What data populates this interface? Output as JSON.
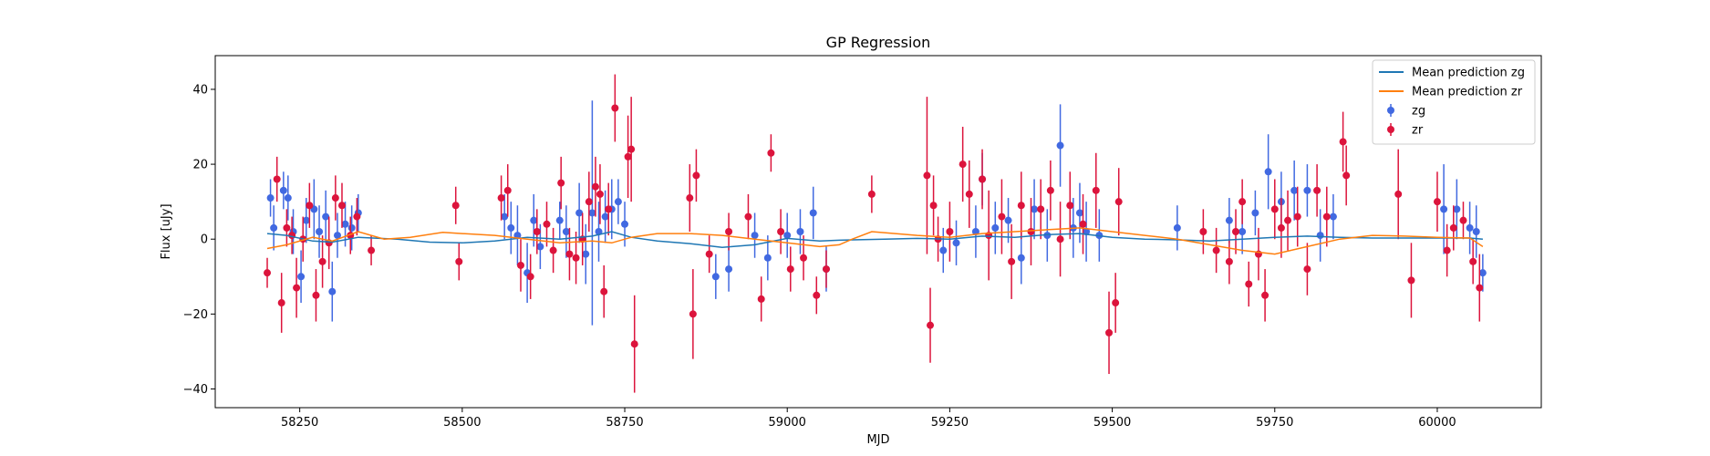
{
  "chart_data": {
    "type": "scatter",
    "title": "GP Regression",
    "xlabel": "MJD",
    "ylabel": "Flux [uJy]",
    "xlim": [
      58120,
      60160
    ],
    "ylim": [
      -45,
      49
    ],
    "xticks": [
      58250,
      58500,
      58750,
      59000,
      59250,
      59500,
      59750,
      60000
    ],
    "yticks": [
      -40,
      -20,
      0,
      20,
      40
    ],
    "grid": false,
    "legend_position": "top-right",
    "legend": [
      {
        "label": "Mean prediction zg",
        "kind": "line",
        "color": "#1f77b4"
      },
      {
        "label": "Mean prediction zr",
        "kind": "line",
        "color": "#ff7f0e"
      },
      {
        "label": "zg",
        "kind": "errorbar",
        "color": "#4169e1"
      },
      {
        "label": "zr",
        "kind": "errorbar",
        "color": "#dc143c"
      }
    ],
    "series": [
      {
        "name": "Mean prediction zg",
        "kind": "line",
        "color": "#1f77b4",
        "x": [
          58200,
          58230,
          58270,
          58300,
          58340,
          58400,
          58450,
          58500,
          58550,
          58600,
          58650,
          58700,
          58730,
          58760,
          58800,
          58850,
          58900,
          58950,
          59000,
          59050,
          59080,
          59100,
          59150,
          59200,
          59250,
          59300,
          59350,
          59400,
          59450,
          59500,
          59550,
          59600,
          59650,
          59700,
          59750,
          59800,
          59850,
          59900,
          59950,
          60000,
          60050,
          60070
        ],
        "y": [
          1.5,
          1.0,
          -0.5,
          -0.8,
          0.5,
          0.0,
          -0.8,
          -1.0,
          -0.5,
          0.5,
          0.0,
          0.8,
          2.0,
          0.5,
          -0.5,
          -1.2,
          -2.2,
          -1.5,
          0.2,
          -0.5,
          -0.3,
          -0.2,
          0.0,
          0.2,
          0.0,
          0.8,
          0.5,
          1.2,
          1.5,
          0.5,
          0.0,
          -0.2,
          -0.5,
          0.0,
          0.5,
          0.8,
          0.5,
          0.3,
          0.3,
          0.3,
          0.3,
          0.0
        ]
      },
      {
        "name": "Mean prediction zr",
        "kind": "line",
        "color": "#ff7f0e",
        "x": [
          58200,
          58230,
          58270,
          58300,
          58340,
          58380,
          58420,
          58470,
          58500,
          58550,
          58600,
          58650,
          58700,
          58730,
          58760,
          58800,
          58850,
          58900,
          58950,
          59000,
          59050,
          59080,
          59100,
          59130,
          59200,
          59250,
          59300,
          59350,
          59400,
          59450,
          59500,
          59550,
          59600,
          59650,
          59700,
          59750,
          59800,
          59850,
          59900,
          59950,
          60000,
          60050,
          60070
        ],
        "y": [
          -2.5,
          -1.5,
          0.5,
          -0.5,
          2.0,
          0.0,
          0.5,
          1.8,
          1.5,
          1.0,
          0.0,
          -1.0,
          -0.5,
          -1.0,
          0.5,
          1.5,
          1.5,
          1.0,
          0.0,
          -1.0,
          -2.0,
          -1.5,
          0.0,
          2.0,
          1.0,
          0.5,
          1.5,
          2.0,
          2.5,
          3.0,
          2.0,
          1.0,
          0.0,
          -1.5,
          -3.0,
          -4.0,
          -2.0,
          0.0,
          1.0,
          0.8,
          0.5,
          0.3,
          -2.0
        ]
      },
      {
        "name": "zg",
        "kind": "errorbar",
        "color": "#4169e1",
        "x": [
          58205,
          58210,
          58225,
          58232,
          58240,
          58252,
          58260,
          58272,
          58280,
          58290,
          58300,
          58308,
          58320,
          58330,
          58340,
          58565,
          58575,
          58585,
          58600,
          58610,
          58620,
          58650,
          58660,
          58680,
          58690,
          58700,
          58710,
          58720,
          58730,
          58740,
          58750,
          58890,
          58910,
          58950,
          58970,
          59000,
          59020,
          59040,
          59060,
          59240,
          59260,
          59290,
          59300,
          59320,
          59340,
          59360,
          59380,
          59400,
          59420,
          59440,
          59450,
          59460,
          59480,
          59600,
          59680,
          59700,
          59720,
          59740,
          59760,
          59780,
          59800,
          59820,
          59840,
          60010,
          60030,
          60050,
          60060,
          60070
        ],
        "y": [
          11,
          3,
          13,
          11,
          2,
          -10,
          5,
          8,
          2,
          6,
          -14,
          1,
          4,
          3,
          7,
          6,
          3,
          1,
          -9,
          5,
          -2,
          5,
          2,
          7,
          -4,
          7,
          2,
          6,
          8,
          10,
          4,
          -10,
          -8,
          1,
          -5,
          1,
          2,
          7,
          -8,
          -3,
          -1,
          2,
          16,
          3,
          5,
          -5,
          8,
          1,
          25,
          3,
          7,
          2,
          1,
          3,
          5,
          2,
          7,
          18,
          10,
          13,
          13,
          1,
          6,
          8,
          8,
          3,
          2,
          -9
        ],
        "err": [
          5,
          6,
          5,
          6,
          6,
          7,
          6,
          8,
          7,
          7,
          8,
          6,
          6,
          6,
          5,
          6,
          7,
          8,
          8,
          7,
          6,
          5,
          7,
          8,
          8,
          30,
          8,
          7,
          8,
          6,
          6,
          6,
          6,
          6,
          6,
          6,
          6,
          7,
          6,
          6,
          6,
          7,
          7,
          7,
          6,
          7,
          8,
          7,
          11,
          8,
          8,
          8,
          7,
          6,
          6,
          6,
          6,
          10,
          8,
          8,
          7,
          7,
          6,
          12,
          8,
          7,
          7,
          5
        ]
      },
      {
        "name": "zr",
        "kind": "errorbar",
        "color": "#dc143c",
        "x": [
          58200,
          58215,
          58222,
          58230,
          58238,
          58245,
          58255,
          58265,
          58275,
          58285,
          58295,
          58305,
          58315,
          58328,
          58338,
          58360,
          58490,
          58495,
          58560,
          58570,
          58590,
          58605,
          58615,
          58630,
          58640,
          58652,
          58665,
          58675,
          58685,
          58695,
          58705,
          58712,
          58718,
          58725,
          58735,
          58755,
          58760,
          58765,
          58850,
          58855,
          58860,
          58880,
          58910,
          58940,
          58960,
          58975,
          58990,
          59005,
          59025,
          59045,
          59060,
          59130,
          59215,
          59220,
          59225,
          59232,
          59250,
          59270,
          59280,
          59300,
          59310,
          59330,
          59345,
          59360,
          59375,
          59390,
          59405,
          59420,
          59435,
          59455,
          59475,
          59495,
          59505,
          59510,
          59640,
          59660,
          59680,
          59690,
          59700,
          59710,
          59725,
          59735,
          59750,
          59760,
          59770,
          59785,
          59800,
          59815,
          59830,
          59855,
          59860,
          59940,
          59960,
          60000,
          60015,
          60025,
          60040,
          60055,
          60065
        ],
        "y": [
          -9,
          16,
          -17,
          3,
          1,
          -13,
          0,
          9,
          -15,
          -6,
          -1,
          11,
          9,
          1,
          6,
          -3,
          9,
          -6,
          11,
          13,
          -7,
          -10,
          2,
          4,
          -3,
          15,
          -4,
          -5,
          0,
          10,
          14,
          12,
          -14,
          8,
          35,
          22,
          24,
          -28,
          11,
          -20,
          17,
          -4,
          2,
          6,
          -16,
          23,
          2,
          -8,
          -5,
          -15,
          -8,
          12,
          17,
          -23,
          9,
          0,
          2,
          20,
          12,
          16,
          1,
          6,
          -6,
          9,
          2,
          8,
          13,
          0,
          9,
          4,
          13,
          -25,
          -17,
          10,
          2,
          -3,
          -6,
          2,
          10,
          -12,
          -4,
          -15,
          8,
          3,
          5,
          6,
          -8,
          13,
          6,
          26,
          17,
          12,
          -11,
          10,
          -3,
          3,
          5,
          -6,
          -13
        ],
        "err": [
          4,
          6,
          8,
          5,
          5,
          8,
          6,
          6,
          7,
          7,
          7,
          6,
          6,
          5,
          5,
          4,
          5,
          5,
          6,
          7,
          7,
          6,
          6,
          6,
          6,
          7,
          7,
          7,
          7,
          8,
          8,
          8,
          7,
          7,
          9,
          11,
          14,
          13,
          9,
          12,
          7,
          5,
          5,
          6,
          6,
          5,
          6,
          6,
          6,
          5,
          5,
          5,
          21,
          10,
          8,
          6,
          8,
          10,
          9,
          8,
          12,
          10,
          10,
          9,
          9,
          8,
          8,
          10,
          9,
          8,
          10,
          11,
          8,
          9,
          6,
          6,
          6,
          6,
          6,
          6,
          7,
          7,
          8,
          8,
          8,
          8,
          7,
          7,
          8,
          8,
          8,
          12,
          10,
          8,
          7,
          6,
          5,
          6,
          9
        ]
      }
    ]
  }
}
